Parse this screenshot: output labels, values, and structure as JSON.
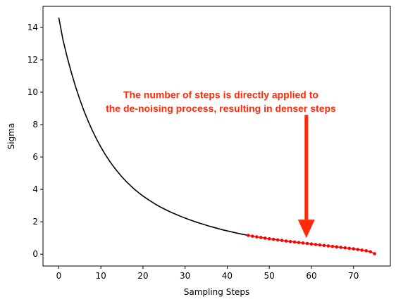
{
  "chart_data": {
    "type": "line",
    "xlabel": "Sampling Steps",
    "ylabel": "Sigma",
    "xlim": [
      -3.75,
      78.75
    ],
    "ylim": [
      -0.73,
      15.3
    ],
    "xticks": [
      0,
      10,
      20,
      30,
      40,
      50,
      60,
      70
    ],
    "yticks": [
      0,
      2,
      4,
      6,
      8,
      10,
      12,
      14
    ],
    "grid": false,
    "series": [
      {
        "color": "#000000",
        "style": "line",
        "x": [
          0,
          1,
          2,
          3,
          4,
          5,
          6,
          7,
          8,
          9,
          10,
          11,
          12,
          13,
          14,
          15,
          16,
          17,
          18,
          19,
          20,
          21,
          22,
          23,
          24,
          25,
          26,
          27,
          28,
          29,
          30,
          31,
          32,
          33,
          34,
          35,
          36,
          37,
          38,
          39,
          40,
          41,
          42,
          43,
          44,
          45
        ],
        "y": [
          14.61,
          13.23,
          12.16,
          11.2,
          10.33,
          9.55,
          8.84,
          8.2,
          7.62,
          7.09,
          6.61,
          6.17,
          5.77,
          5.41,
          5.08,
          4.77,
          4.49,
          4.24,
          4.0,
          3.79,
          3.59,
          3.41,
          3.24,
          3.08,
          2.93,
          2.8,
          2.67,
          2.55,
          2.44,
          2.33,
          2.23,
          2.13,
          2.04,
          1.95,
          1.87,
          1.79,
          1.71,
          1.64,
          1.57,
          1.5,
          1.44,
          1.38,
          1.32,
          1.26,
          1.21,
          1.16
        ]
      },
      {
        "color": "#ff0000",
        "style": "line-markers",
        "x": [
          45,
          46,
          47,
          48,
          49,
          50,
          51,
          52,
          53,
          54,
          55,
          56,
          57,
          58,
          59,
          60,
          61,
          62,
          63,
          64,
          65,
          66,
          67,
          68,
          69,
          70,
          71,
          72,
          73,
          74,
          75
        ],
        "y": [
          1.16,
          1.11,
          1.07,
          1.03,
          0.99,
          0.95,
          0.92,
          0.88,
          0.85,
          0.81,
          0.78,
          0.75,
          0.72,
          0.69,
          0.66,
          0.63,
          0.6,
          0.57,
          0.54,
          0.51,
          0.48,
          0.45,
          0.42,
          0.39,
          0.36,
          0.33,
          0.29,
          0.25,
          0.21,
          0.15,
          0.03
        ]
      }
    ],
    "annotation": {
      "lines": [
        "The number of steps is directly applied to",
        "the de-noising process, resulting in denser steps"
      ],
      "color": "#ff2a0a",
      "arrow_color": "#ff2a0a",
      "text_x": 38.5,
      "text_y": [
        9.85,
        9.0
      ],
      "arrow_x": 58.8,
      "arrow_from_y": 8.6,
      "arrow_to_y": 1.0
    }
  }
}
